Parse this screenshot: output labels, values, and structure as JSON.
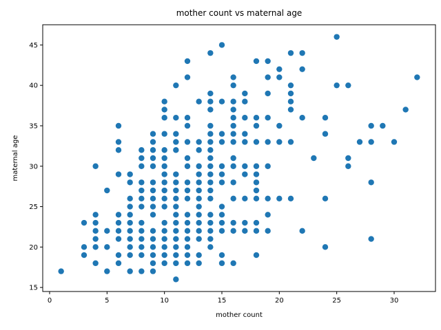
{
  "chart_data": {
    "type": "scatter",
    "title": "mother count vs maternal age",
    "xlabel": "mother count",
    "ylabel": "maternal age",
    "xlim": [
      -0.6,
      33.6
    ],
    "ylim": [
      14.5,
      47.5
    ],
    "xticks": [
      0,
      5,
      10,
      15,
      20,
      25,
      30
    ],
    "yticks": [
      15,
      20,
      25,
      30,
      35,
      40,
      45
    ],
    "marker_color": "#1f77b4",
    "grid": false,
    "series": [
      {
        "points": [
          [
            1,
            17
          ],
          [
            3,
            23
          ],
          [
            3,
            20
          ],
          [
            3,
            19
          ],
          [
            4,
            30
          ],
          [
            4,
            24
          ],
          [
            4,
            23
          ],
          [
            4,
            22
          ],
          [
            4,
            21
          ],
          [
            4,
            20
          ],
          [
            4,
            18
          ],
          [
            5,
            27
          ],
          [
            5,
            22
          ],
          [
            5,
            20
          ],
          [
            5,
            17
          ],
          [
            6,
            35
          ],
          [
            6,
            33
          ],
          [
            6,
            32
          ],
          [
            6,
            29
          ],
          [
            6,
            24
          ],
          [
            6,
            23
          ],
          [
            6,
            22
          ],
          [
            6,
            21
          ],
          [
            6,
            19
          ],
          [
            6,
            18
          ],
          [
            7,
            29
          ],
          [
            7,
            28
          ],
          [
            7,
            26
          ],
          [
            7,
            25
          ],
          [
            7,
            24
          ],
          [
            7,
            23
          ],
          [
            7,
            22
          ],
          [
            7,
            21
          ],
          [
            7,
            20
          ],
          [
            7,
            19
          ],
          [
            7,
            17
          ],
          [
            8,
            32
          ],
          [
            8,
            31
          ],
          [
            8,
            30
          ],
          [
            8,
            28
          ],
          [
            8,
            27
          ],
          [
            8,
            26
          ],
          [
            8,
            25
          ],
          [
            8,
            23
          ],
          [
            8,
            22
          ],
          [
            8,
            21
          ],
          [
            8,
            20
          ],
          [
            8,
            19
          ],
          [
            8,
            17
          ],
          [
            9,
            34
          ],
          [
            9,
            33
          ],
          [
            9,
            32
          ],
          [
            9,
            31
          ],
          [
            9,
            30
          ],
          [
            9,
            28
          ],
          [
            9,
            27
          ],
          [
            9,
            26
          ],
          [
            9,
            25
          ],
          [
            9,
            24
          ],
          [
            9,
            22
          ],
          [
            9,
            21
          ],
          [
            9,
            20
          ],
          [
            9,
            19
          ],
          [
            9,
            18
          ],
          [
            9,
            17
          ],
          [
            10,
            38
          ],
          [
            10,
            37
          ],
          [
            10,
            36
          ],
          [
            10,
            34
          ],
          [
            10,
            32
          ],
          [
            10,
            31
          ],
          [
            10,
            30
          ],
          [
            10,
            29
          ],
          [
            10,
            28
          ],
          [
            10,
            27
          ],
          [
            10,
            26
          ],
          [
            10,
            25
          ],
          [
            10,
            23
          ],
          [
            10,
            22
          ],
          [
            10,
            21
          ],
          [
            10,
            20
          ],
          [
            10,
            19
          ],
          [
            10,
            18
          ],
          [
            11,
            40
          ],
          [
            11,
            36
          ],
          [
            11,
            34
          ],
          [
            11,
            33
          ],
          [
            11,
            32
          ],
          [
            11,
            29
          ],
          [
            11,
            28
          ],
          [
            11,
            27
          ],
          [
            11,
            26
          ],
          [
            11,
            25
          ],
          [
            11,
            24
          ],
          [
            11,
            23
          ],
          [
            11,
            22
          ],
          [
            11,
            21
          ],
          [
            11,
            20
          ],
          [
            11,
            19
          ],
          [
            11,
            18
          ],
          [
            11,
            16
          ],
          [
            12,
            43
          ],
          [
            12,
            41
          ],
          [
            12,
            36
          ],
          [
            12,
            35
          ],
          [
            12,
            33
          ],
          [
            12,
            31
          ],
          [
            12,
            30
          ],
          [
            12,
            28
          ],
          [
            12,
            27
          ],
          [
            12,
            26
          ],
          [
            12,
            24
          ],
          [
            12,
            23
          ],
          [
            12,
            22
          ],
          [
            12,
            21
          ],
          [
            12,
            20
          ],
          [
            12,
            19
          ],
          [
            12,
            18
          ],
          [
            13,
            38
          ],
          [
            13,
            33
          ],
          [
            13,
            32
          ],
          [
            13,
            30
          ],
          [
            13,
            29
          ],
          [
            13,
            28
          ],
          [
            13,
            27
          ],
          [
            13,
            26
          ],
          [
            13,
            25
          ],
          [
            13,
            24
          ],
          [
            13,
            23
          ],
          [
            13,
            22
          ],
          [
            13,
            21
          ],
          [
            13,
            19
          ],
          [
            13,
            18
          ],
          [
            14,
            44
          ],
          [
            14,
            39
          ],
          [
            14,
            38
          ],
          [
            14,
            37
          ],
          [
            14,
            35
          ],
          [
            14,
            34
          ],
          [
            14,
            33
          ],
          [
            14,
            32
          ],
          [
            14,
            31
          ],
          [
            14,
            30
          ],
          [
            14,
            29
          ],
          [
            14,
            28
          ],
          [
            14,
            27
          ],
          [
            14,
            26
          ],
          [
            14,
            24
          ],
          [
            14,
            23
          ],
          [
            14,
            22
          ],
          [
            14,
            21
          ],
          [
            14,
            20
          ],
          [
            15,
            45
          ],
          [
            15,
            38
          ],
          [
            15,
            34
          ],
          [
            15,
            33
          ],
          [
            15,
            30
          ],
          [
            15,
            29
          ],
          [
            15,
            28
          ],
          [
            15,
            25
          ],
          [
            15,
            24
          ],
          [
            15,
            23
          ],
          [
            15,
            22
          ],
          [
            15,
            19
          ],
          [
            15,
            18
          ],
          [
            16,
            41
          ],
          [
            16,
            40
          ],
          [
            16,
            38
          ],
          [
            16,
            37
          ],
          [
            16,
            36
          ],
          [
            16,
            35
          ],
          [
            16,
            34
          ],
          [
            16,
            33
          ],
          [
            16,
            31
          ],
          [
            16,
            30
          ],
          [
            16,
            28
          ],
          [
            16,
            26
          ],
          [
            16,
            23
          ],
          [
            16,
            22
          ],
          [
            16,
            18
          ],
          [
            17,
            39
          ],
          [
            17,
            38
          ],
          [
            17,
            36
          ],
          [
            17,
            34
          ],
          [
            17,
            33
          ],
          [
            17,
            30
          ],
          [
            17,
            29
          ],
          [
            17,
            26
          ],
          [
            17,
            23
          ],
          [
            17,
            22
          ],
          [
            18,
            43
          ],
          [
            18,
            36
          ],
          [
            18,
            35
          ],
          [
            18,
            33
          ],
          [
            18,
            30
          ],
          [
            18,
            29
          ],
          [
            18,
            28
          ],
          [
            18,
            27
          ],
          [
            18,
            26
          ],
          [
            18,
            23
          ],
          [
            18,
            22
          ],
          [
            18,
            19
          ],
          [
            19,
            43
          ],
          [
            19,
            41
          ],
          [
            19,
            39
          ],
          [
            19,
            36
          ],
          [
            19,
            33
          ],
          [
            19,
            30
          ],
          [
            19,
            26
          ],
          [
            19,
            24
          ],
          [
            19,
            22
          ],
          [
            20,
            42
          ],
          [
            20,
            41
          ],
          [
            20,
            35
          ],
          [
            20,
            33
          ],
          [
            20,
            26
          ],
          [
            21,
            44
          ],
          [
            21,
            40
          ],
          [
            21,
            39
          ],
          [
            21,
            38
          ],
          [
            21,
            37
          ],
          [
            21,
            33
          ],
          [
            21,
            26
          ],
          [
            22,
            44
          ],
          [
            22,
            42
          ],
          [
            22,
            36
          ],
          [
            22,
            22
          ],
          [
            23,
            31
          ],
          [
            24,
            36
          ],
          [
            24,
            34
          ],
          [
            24,
            26
          ],
          [
            24,
            20
          ],
          [
            25,
            46
          ],
          [
            25,
            40
          ],
          [
            26,
            40
          ],
          [
            26,
            31
          ],
          [
            26,
            30
          ],
          [
            27,
            33
          ],
          [
            28,
            35
          ],
          [
            28,
            33
          ],
          [
            28,
            28
          ],
          [
            28,
            21
          ],
          [
            29,
            35
          ],
          [
            30,
            33
          ],
          [
            31,
            37
          ],
          [
            32,
            41
          ]
        ]
      }
    ]
  }
}
